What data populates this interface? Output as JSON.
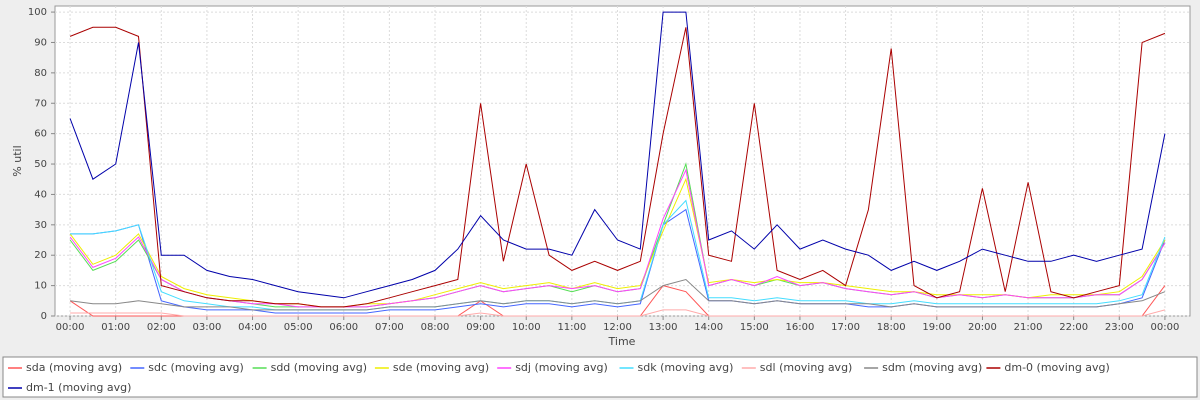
{
  "chart_data": {
    "type": "line",
    "xlabel": "Time",
    "ylabel": "% util",
    "x": [
      0,
      0.5,
      1,
      1.5,
      2,
      2.5,
      3,
      3.5,
      4,
      4.5,
      5,
      5.5,
      6,
      6.5,
      7,
      7.5,
      8,
      8.5,
      9,
      9.5,
      10,
      10.5,
      11,
      11.5,
      12,
      12.5,
      13,
      13.5,
      14,
      14.5,
      15,
      15.5,
      16,
      16.5,
      17,
      17.5,
      18,
      18.5,
      19,
      19.5,
      20,
      20.5,
      21,
      21.5,
      22,
      22.5,
      23,
      23.5,
      24
    ],
    "xlim": [
      -0.33,
      24.55
    ],
    "xticks": [
      {
        "value": 0,
        "label": "00:00"
      },
      {
        "value": 1,
        "label": "01:00"
      },
      {
        "value": 2,
        "label": "02:00"
      },
      {
        "value": 3,
        "label": "03:00"
      },
      {
        "value": 4,
        "label": "04:00"
      },
      {
        "value": 5,
        "label": "05:00"
      },
      {
        "value": 6,
        "label": "06:00"
      },
      {
        "value": 7,
        "label": "07:00"
      },
      {
        "value": 8,
        "label": "08:00"
      },
      {
        "value": 9,
        "label": "09:00"
      },
      {
        "value": 10,
        "label": "10:00"
      },
      {
        "value": 11,
        "label": "11:00"
      },
      {
        "value": 12,
        "label": "12:00"
      },
      {
        "value": 13,
        "label": "13:00"
      },
      {
        "value": 14,
        "label": "14:00"
      },
      {
        "value": 15,
        "label": "15:00"
      },
      {
        "value": 16,
        "label": "16:00"
      },
      {
        "value": 17,
        "label": "17:00"
      },
      {
        "value": 18,
        "label": "18:00"
      },
      {
        "value": 19,
        "label": "19:00"
      },
      {
        "value": 20,
        "label": "20:00"
      },
      {
        "value": 21,
        "label": "21:00"
      },
      {
        "value": 22,
        "label": "22:00"
      },
      {
        "value": 23,
        "label": "23:00"
      },
      {
        "value": 24,
        "label": "00:00"
      }
    ],
    "ylim": [
      0,
      102
    ],
    "yticks": [
      0,
      10,
      20,
      30,
      40,
      50,
      60,
      70,
      80,
      90,
      100
    ],
    "grid": true,
    "legend": "bottom",
    "series": [
      {
        "name": "sda (moving avg)",
        "color": "#ff5555",
        "values": [
          5,
          0,
          0,
          0,
          0,
          0,
          0,
          0,
          0,
          0,
          0,
          0,
          0,
          0,
          0,
          0,
          0,
          0,
          5,
          0,
          0,
          0,
          0,
          0,
          0,
          0,
          10,
          8,
          0,
          0,
          0,
          0,
          0,
          0,
          0,
          0,
          0,
          0,
          0,
          0,
          0,
          0,
          0,
          0,
          0,
          0,
          0,
          0,
          10
        ]
      },
      {
        "name": "sdc (moving avg)",
        "color": "#4466ff",
        "values": [
          27,
          27,
          28,
          30,
          5,
          3,
          2,
          2,
          2,
          1,
          1,
          1,
          1,
          1,
          2,
          2,
          2,
          3,
          4,
          3,
          4,
          4,
          3,
          4,
          3,
          4,
          30,
          35,
          5,
          5,
          4,
          5,
          4,
          4,
          4,
          3,
          3,
          4,
          3,
          3,
          3,
          3,
          3,
          3,
          3,
          3,
          4,
          6,
          25
        ]
      },
      {
        "name": "sdd (moving avg)",
        "color": "#55dd55",
        "values": [
          25,
          15,
          18,
          25,
          12,
          8,
          6,
          5,
          4,
          3,
          3,
          3,
          3,
          3,
          4,
          5,
          6,
          8,
          10,
          8,
          9,
          10,
          8,
          10,
          8,
          9,
          30,
          50,
          10,
          12,
          10,
          12,
          10,
          11,
          9,
          8,
          7,
          8,
          6,
          7,
          6,
          7,
          6,
          6,
          6,
          7,
          7,
          12,
          24
        ]
      },
      {
        "name": "sde (moving avg)",
        "color": "#eeee00",
        "values": [
          27,
          17,
          20,
          27,
          13,
          9,
          7,
          6,
          5,
          4,
          4,
          3,
          3,
          4,
          4,
          5,
          7,
          9,
          11,
          9,
          10,
          11,
          9,
          11,
          9,
          10,
          28,
          45,
          11,
          12,
          11,
          12,
          11,
          11,
          10,
          9,
          8,
          8,
          7,
          7,
          7,
          7,
          6,
          7,
          7,
          7,
          8,
          13,
          25
        ]
      },
      {
        "name": "sdj (moving avg)",
        "color": "#ff44ff",
        "values": [
          26,
          16,
          19,
          26,
          12,
          8,
          6,
          5,
          4,
          4,
          3,
          3,
          3,
          3,
          4,
          5,
          6,
          8,
          10,
          8,
          9,
          10,
          9,
          10,
          8,
          9,
          32,
          48,
          10,
          12,
          10,
          13,
          10,
          11,
          9,
          8,
          7,
          8,
          6,
          7,
          6,
          7,
          6,
          6,
          6,
          7,
          7,
          12,
          24
        ]
      },
      {
        "name": "sdk (moving avg)",
        "color": "#44ddff",
        "values": [
          27,
          27,
          28,
          30,
          8,
          5,
          4,
          3,
          3,
          2,
          2,
          2,
          2,
          2,
          3,
          3,
          3,
          4,
          5,
          4,
          5,
          5,
          4,
          5,
          4,
          5,
          30,
          38,
          6,
          6,
          5,
          6,
          5,
          5,
          5,
          4,
          4,
          5,
          4,
          4,
          4,
          4,
          4,
          4,
          4,
          4,
          5,
          7,
          26
        ]
      },
      {
        "name": "sdl (moving avg)",
        "color": "#ffaaaa",
        "values": [
          1,
          1,
          1,
          1,
          1,
          0,
          0,
          0,
          0,
          0,
          0,
          0,
          0,
          0,
          0,
          0,
          0,
          0,
          1,
          0,
          0,
          0,
          0,
          0,
          0,
          0,
          2,
          2,
          0,
          0,
          0,
          0,
          0,
          0,
          0,
          0,
          0,
          0,
          0,
          0,
          0,
          0,
          0,
          0,
          0,
          0,
          0,
          0,
          2
        ]
      },
      {
        "name": "sdm (moving avg)",
        "color": "#888888",
        "values": [
          5,
          4,
          4,
          5,
          4,
          3,
          3,
          3,
          2,
          2,
          2,
          2,
          2,
          2,
          3,
          3,
          3,
          4,
          5,
          4,
          5,
          5,
          4,
          5,
          4,
          5,
          10,
          12,
          5,
          5,
          4,
          5,
          4,
          4,
          4,
          4,
          3,
          4,
          3,
          3,
          3,
          3,
          3,
          3,
          3,
          3,
          4,
          5,
          8
        ]
      },
      {
        "name": "dm-0 (moving avg)",
        "color": "#aa0000",
        "values": [
          92,
          95,
          95,
          92,
          10,
          8,
          6,
          5,
          5,
          4,
          4,
          3,
          3,
          4,
          6,
          8,
          10,
          12,
          70,
          18,
          50,
          20,
          15,
          18,
          15,
          18,
          60,
          95,
          20,
          18,
          70,
          15,
          12,
          15,
          10,
          35,
          88,
          10,
          6,
          8,
          42,
          8,
          44,
          8,
          6,
          8,
          10,
          90,
          93
        ]
      },
      {
        "name": "dm-1 (moving avg)",
        "color": "#0000aa",
        "values": [
          65,
          45,
          50,
          90,
          20,
          20,
          15,
          13,
          12,
          10,
          8,
          7,
          6,
          8,
          10,
          12,
          15,
          22,
          33,
          25,
          22,
          22,
          20,
          35,
          25,
          22,
          100,
          100,
          25,
          28,
          22,
          30,
          22,
          25,
          22,
          20,
          15,
          18,
          15,
          18,
          22,
          20,
          18,
          18,
          20,
          18,
          20,
          22,
          60
        ]
      }
    ]
  }
}
